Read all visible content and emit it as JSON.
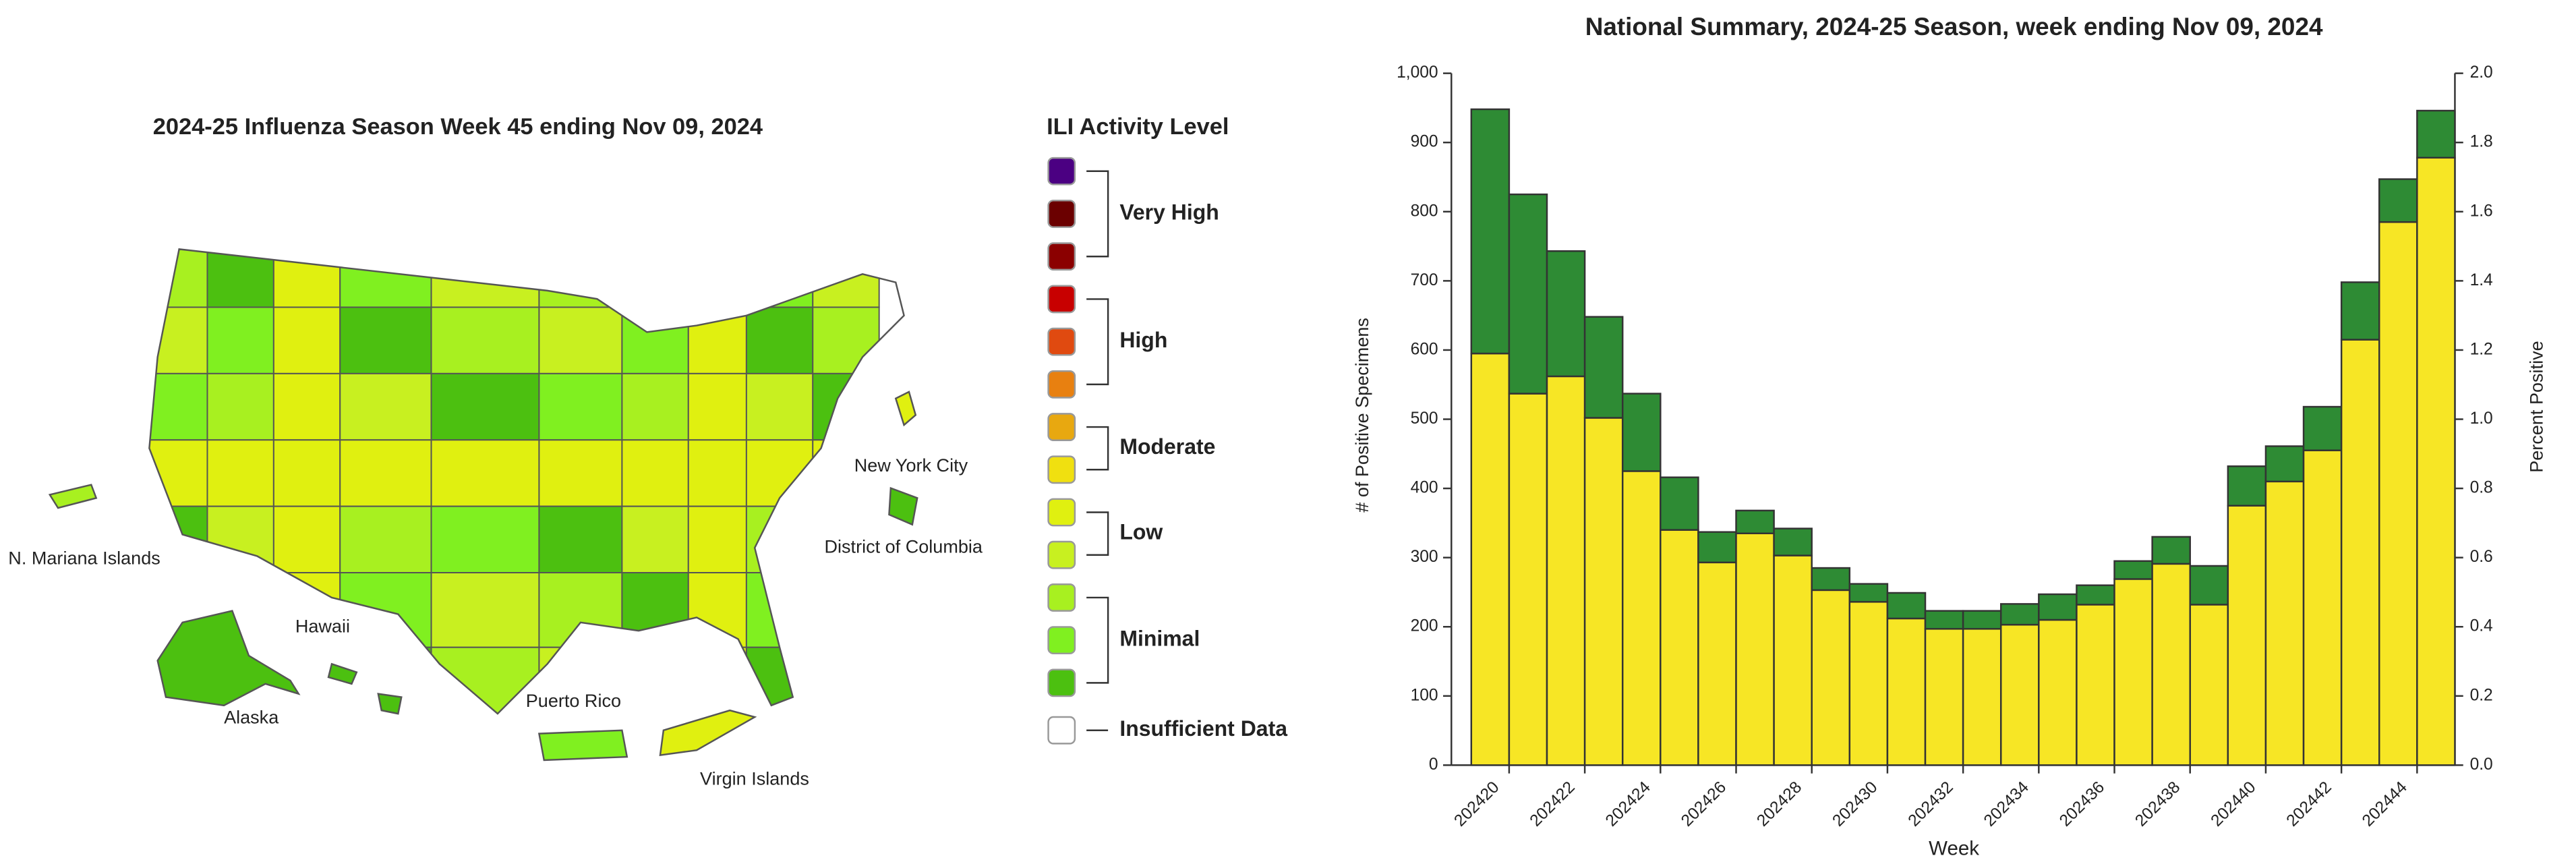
{
  "map": {
    "title": "2024-25 Influenza Season Week 45 ending Nov 09, 2024",
    "legend": {
      "title": "ILI Activity Level",
      "levels": [
        "#4b0082",
        "#6b0000",
        "#8b0000",
        "#c80000",
        "#e04a10",
        "#e88010",
        "#e8a810",
        "#f0e010",
        "#e0f010",
        "#c8f020",
        "#a8f020",
        "#80f020",
        "#4cc010"
      ],
      "groups": [
        {
          "label": "Very High",
          "from": 0,
          "to": 2
        },
        {
          "label": "High",
          "from": 3,
          "to": 5
        },
        {
          "label": "Moderate",
          "from": 6,
          "to": 7
        },
        {
          "label": "Low",
          "from": 8,
          "to": 9
        },
        {
          "label": "Minimal",
          "from": 10,
          "to": 12
        }
      ],
      "insufficient": "Insufficient Data"
    },
    "labels": [
      "N. Mariana Islands",
      "Hawaii",
      "Alaska",
      "Puerto Rico",
      "Virgin Islands",
      "New York City",
      "District of Columbia"
    ]
  },
  "chart_data": {
    "type": "stacked_bar",
    "title": "National Summary, 2024-25 Season, week ending Nov 09, 2024",
    "x_label": "Week",
    "y_label": "# of Positive Specimens",
    "y2_label": "Percent Positive",
    "categories": [
      "202420",
      null,
      "202422",
      null,
      "202424",
      null,
      "202426",
      null,
      "202428",
      null,
      "202430",
      null,
      "202432",
      null,
      "202434",
      null,
      "202436",
      null,
      "202438",
      null,
      "202440",
      null,
      "202442",
      null,
      "202444",
      null
    ],
    "series": [
      {
        "color": "#f7e625",
        "values": [
          595,
          537,
          562,
          502,
          425,
          340,
          293,
          335,
          303,
          253,
          236,
          212,
          197,
          197,
          203,
          210,
          232,
          269,
          291,
          232,
          375,
          410,
          455,
          615,
          785,
          878
        ]
      },
      {
        "color": "#2e8b34",
        "values": [
          353,
          288,
          181,
          146,
          112,
          76,
          44,
          33,
          39,
          32,
          26,
          37,
          26,
          26,
          30,
          37,
          28,
          26,
          39,
          56,
          57,
          51,
          63,
          83,
          62,
          68
        ]
      }
    ],
    "ylim": [
      0,
      1000
    ],
    "yticks": [
      0,
      100,
      200,
      300,
      400,
      500,
      600,
      700,
      800,
      900,
      {
        "value": 1000,
        "label": "1,000"
      }
    ],
    "y2lim": [
      0,
      2
    ],
    "y2ticks": [
      {
        "value": 0,
        "label": "0.0"
      },
      0.2,
      0.4,
      0.6,
      0.8,
      {
        "value": 1,
        "label": "1.0"
      },
      1.2,
      1.4,
      1.6,
      1.8,
      {
        "value": 2,
        "label": "2.0"
      }
    ]
  }
}
